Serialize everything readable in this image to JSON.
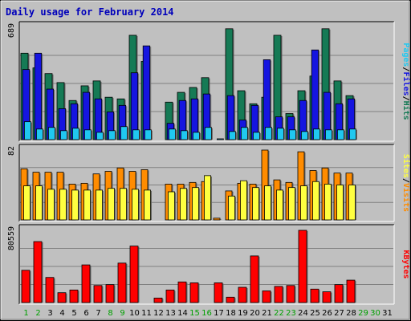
{
  "chart_data": {
    "type": "bar",
    "title": "Daily usage for February 2014",
    "categories": [
      "1",
      "2",
      "3",
      "4",
      "5",
      "6",
      "7",
      "8",
      "9",
      "10",
      "11",
      "12",
      "13",
      "14",
      "15",
      "16",
      "17",
      "18",
      "19",
      "20",
      "21",
      "22",
      "23",
      "24",
      "25",
      "26",
      "27",
      "28",
      "29",
      "30",
      "31"
    ],
    "weekend_days": [
      "1",
      "2",
      "8",
      "9",
      "15",
      "16",
      "22",
      "23",
      "29",
      "30"
    ],
    "panels": [
      {
        "id": "hits",
        "ymax_label": "689",
        "ymax": 689,
        "side_label": [
          "Pages",
          "/",
          "Files",
          "/",
          "Hits"
        ],
        "series": [
          {
            "name": "Hits",
            "color": "#157a55",
            "values": [
              530,
              440,
              405,
              350,
              240,
              330,
              360,
              260,
              250,
              640,
              480,
              0,
              230,
              290,
              320,
              380,
              0,
              680,
              300,
              220,
              260,
              640,
              160,
              300,
              390,
              680,
              360,
              270,
              0,
              0,
              0
            ]
          },
          {
            "name": "Files",
            "color": "#1515e0",
            "values": [
              430,
              530,
              310,
              190,
              220,
              290,
              250,
              170,
              210,
              410,
              575,
              0,
              100,
              240,
              250,
              280,
              0,
              270,
              120,
              210,
              490,
              140,
              140,
              240,
              550,
              290,
              220,
              250,
              0,
              0,
              0
            ]
          },
          {
            "name": "Pages",
            "color": "#20c8f0",
            "values": [
              110,
              65,
              75,
              55,
              70,
              60,
              45,
              55,
              80,
              60,
              60,
              0,
              65,
              55,
              45,
              75,
              5,
              50,
              75,
              45,
              75,
              70,
              60,
              50,
              65,
              60,
              60,
              65,
              0,
              0,
              0
            ]
          }
        ]
      },
      {
        "id": "visits",
        "ymax_label": "82",
        "ymax": 82,
        "side_label": [
          "Sites",
          "/",
          "Visits"
        ],
        "series": [
          {
            "name": "Visits",
            "color": "#ff8c00",
            "values": [
              60,
              56,
              56,
              56,
              42,
              43,
              54,
              57,
              61,
              57,
              59,
              0,
              42,
              42,
              44,
              45,
              2,
              34,
              43,
              42,
              82,
              47,
              44,
              80,
              58,
              61,
              55,
              55,
              0,
              0,
              0
            ]
          },
          {
            "name": "Sites",
            "color": "#ffff40",
            "values": [
              40,
              40,
              36,
              36,
              35,
              35,
              35,
              37,
              37,
              36,
              35,
              0,
              33,
              37,
              38,
              52,
              0,
              28,
              46,
              38,
              40,
              35,
              38,
              40,
              45,
              42,
              41,
              41,
              0,
              0,
              0
            ]
          }
        ]
      },
      {
        "id": "kbytes",
        "ymax_label": "80559",
        "ymax": 80559,
        "side_label": [
          "KBytes"
        ],
        "series": [
          {
            "name": "KBytes",
            "color": "#ff0000",
            "values": [
              36000,
              68000,
              28000,
              11000,
              14000,
              42000,
              19000,
              20000,
              44000,
              63000,
              0,
              5000,
              14000,
              23000,
              22000,
              0,
              22000,
              6000,
              17000,
              52000,
              13000,
              18000,
              19000,
              80559,
              15000,
              12000,
              20000,
              25000,
              0,
              0,
              0
            ]
          }
        ]
      }
    ]
  }
}
